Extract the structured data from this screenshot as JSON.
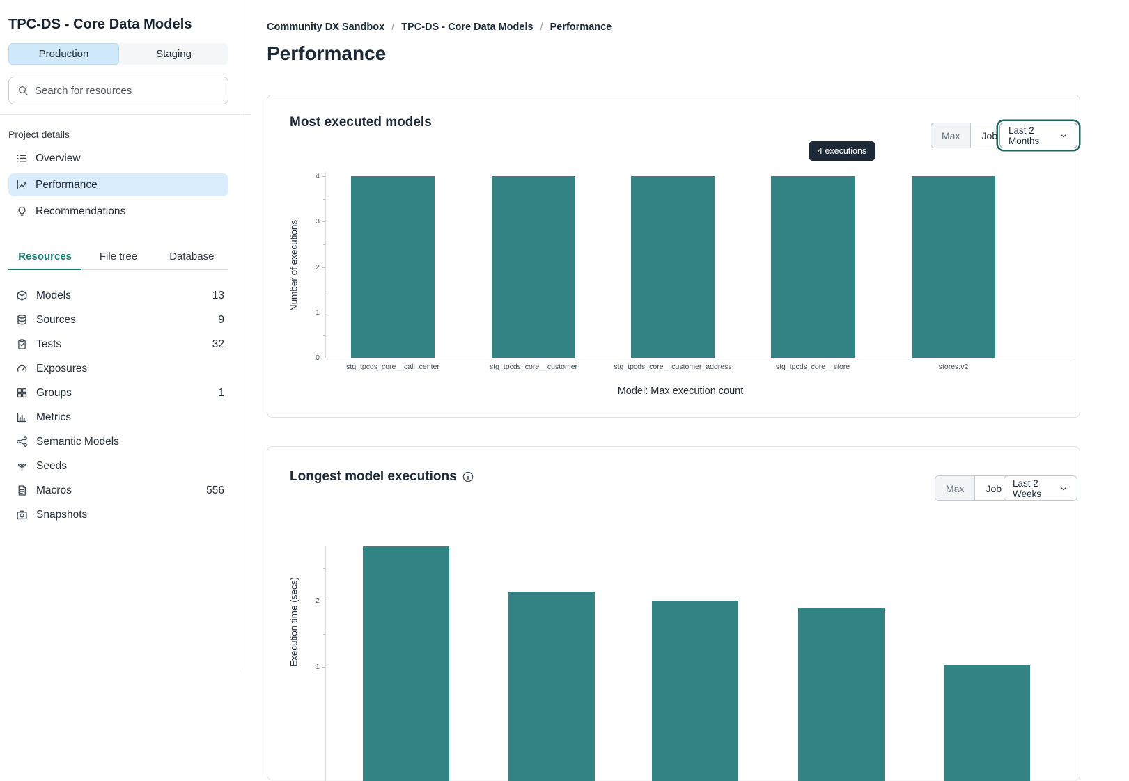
{
  "sidebar": {
    "project_title": "TPC-DS - Core Data Models",
    "env_tabs": [
      {
        "label": "Production",
        "active": true
      },
      {
        "label": "Staging",
        "active": false
      }
    ],
    "search_placeholder": "Search for resources",
    "section_label": "Project details",
    "nav_items": [
      {
        "label": "Overview",
        "icon": "list-icon",
        "active": false
      },
      {
        "label": "Performance",
        "icon": "chart-line-icon",
        "active": true
      },
      {
        "label": "Recommendations",
        "icon": "lightbulb-icon",
        "active": false
      }
    ],
    "resource_tabs": [
      {
        "label": "Resources",
        "active": true
      },
      {
        "label": "File tree",
        "active": false
      },
      {
        "label": "Database",
        "active": false
      }
    ],
    "resources": [
      {
        "label": "Models",
        "icon": "cube-icon",
        "count": "13"
      },
      {
        "label": "Sources",
        "icon": "database-icon",
        "count": "9"
      },
      {
        "label": "Tests",
        "icon": "clipboard-check-icon",
        "count": "32"
      },
      {
        "label": "Exposures",
        "icon": "gauge-icon",
        "count": ""
      },
      {
        "label": "Groups",
        "icon": "grid-icon",
        "count": "1"
      },
      {
        "label": "Metrics",
        "icon": "bar-chart-icon",
        "count": ""
      },
      {
        "label": "Semantic Models",
        "icon": "share-network-icon",
        "count": ""
      },
      {
        "label": "Seeds",
        "icon": "sprout-icon",
        "count": ""
      },
      {
        "label": "Macros",
        "icon": "file-text-icon",
        "count": "556"
      },
      {
        "label": "Snapshots",
        "icon": "camera-icon",
        "count": ""
      }
    ]
  },
  "breadcrumb": {
    "items": [
      "Community DX Sandbox",
      "TPC-DS - Core Data Models",
      "Performance"
    ],
    "separator": "/"
  },
  "page_title": "Performance",
  "cards": [
    {
      "title": "Most executed models",
      "toggle": [
        "Max",
        "Job"
      ],
      "range_label": "Last 2 Months",
      "range_focused": true,
      "tooltip": "4 executions"
    },
    {
      "title": "Longest model executions",
      "has_info_icon": true,
      "toggle": [
        "Max",
        "Job"
      ],
      "range_label": "Last 2 Weeks",
      "range_focused": false
    }
  ],
  "chart_data": [
    {
      "type": "bar",
      "title": "Most executed models",
      "categories": [
        "stg_tpcds_core__call_center",
        "stg_tpcds_core__customer",
        "stg_tpcds_core__customer_address",
        "stg_tpcds_core__store",
        "stores.v2"
      ],
      "values": [
        4,
        4,
        4,
        4,
        4
      ],
      "ylabel": "Number of executions",
      "xlabel": "Model: Max execution count",
      "yticks": [
        0,
        1,
        2,
        3,
        4
      ],
      "ylim": [
        0,
        4
      ],
      "grid": false,
      "legend": false,
      "bar_color": "#348384",
      "tooltip": {
        "text": "4 executions",
        "bar_index": 3
      }
    },
    {
      "type": "bar",
      "title": "Longest model executions",
      "values": [
        2.82,
        2.14,
        2.0,
        1.89,
        1.02
      ],
      "ylabel": "Execution time (secs)",
      "yticks_visible": [
        2,
        1
      ],
      "grid": false,
      "legend": false,
      "bar_color": "#348384",
      "clipped_bottom": true
    }
  ],
  "colors": {
    "bar_teal": "#348384",
    "accent_teal": "#1b7b72",
    "selection_blue": "#cfe8fa",
    "active_nav_blue": "#d9edfc",
    "tooltip_bg": "#1d2936",
    "focus_ring": "#1f645f",
    "text_primary": "#1c2936"
  }
}
